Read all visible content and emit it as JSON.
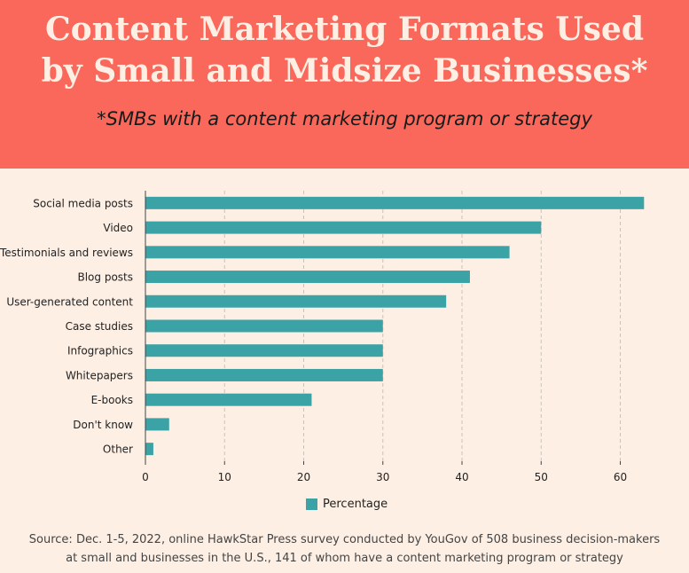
{
  "title_line1": "Content Marketing Formats Used",
  "title_line2": "by Small and Midsize Businesses*",
  "subtitle": "*SMBs with a content marketing program or strategy",
  "source_line1": "Source: Dec. 1-5, 2022, online HawkStar Press survey conducted by YouGov of 508 business decision-makers",
  "source_line2": "at small and businesses in the U.S., 141 of whom have a content marketing program or strategy",
  "colors": {
    "header": "#f9685a",
    "background": "#fdefe4",
    "bar": "#3ba3a6",
    "grid": "#c9c2bb"
  },
  "chart_data": {
    "type": "bar",
    "orientation": "horizontal",
    "categories": [
      "Social media posts",
      "Video",
      "Testimonials and reviews",
      "Blog posts",
      "User-generated content",
      "Case studies",
      "Infographics",
      "Whitepapers",
      "E-books",
      "Don't know",
      "Other"
    ],
    "series": [
      {
        "name": "Percentage",
        "values": [
          63,
          50,
          46,
          41,
          38,
          30,
          30,
          30,
          21,
          3,
          1
        ]
      }
    ],
    "xlim": [
      0,
      67
    ],
    "xticks": [
      0,
      10,
      20,
      30,
      40,
      50,
      60
    ],
    "grid": "vertical dashed",
    "legend_position": "bottom-center"
  }
}
